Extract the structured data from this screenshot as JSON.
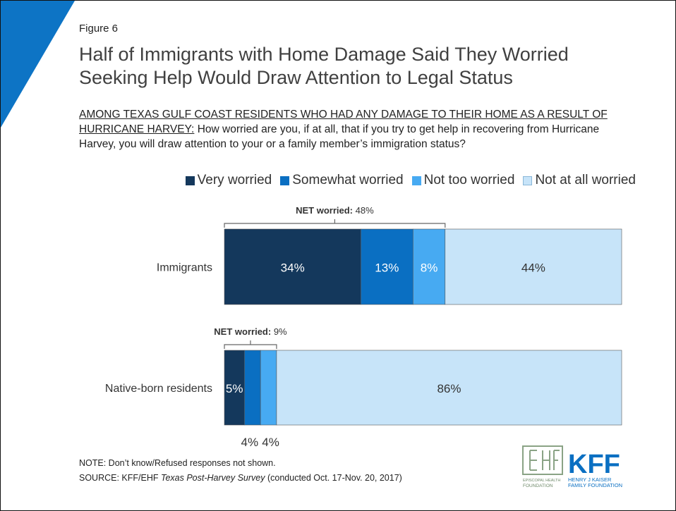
{
  "figure_label": "Figure 6",
  "title_line1": "Half of Immigrants with Home Damage Said They Worried",
  "title_line2": "Seeking Help Would Draw Attention to Legal Status",
  "subtitle_underlined": "AMONG TEXAS GULF COAST RESIDENTS WHO HAD ANY DAMAGE TO THEIR HOME AS A RESULT OF HURRICANE HARVEY:",
  "subtitle_question": "How worried are you, if at all, that if you try to get help in recovering from Hurricane Harvey, you will draw attention to your or a family member’s immigration status?",
  "colors": {
    "very": "#14385c",
    "somewhat": "#0a6fc2",
    "nottoo": "#47aaf2",
    "notatall": "#c7e4f9",
    "accent_triangle": "#0d74c5"
  },
  "chart_data": {
    "type": "bar",
    "orientation": "horizontal",
    "stacked": true,
    "xlim": [
      0,
      100
    ],
    "categories": [
      "Immigrants",
      "Native-born residents"
    ],
    "series": [
      {
        "name": "Very worried",
        "values": [
          34,
          5
        ],
        "labels": [
          "34%",
          "5%"
        ]
      },
      {
        "name": "Somewhat worried",
        "values": [
          13,
          4
        ],
        "labels": [
          "13%",
          "4%"
        ]
      },
      {
        "name": "Not too worried",
        "values": [
          8,
          4
        ],
        "labels": [
          "8%",
          "4%"
        ]
      },
      {
        "name": "Not at all worried",
        "values": [
          44,
          86
        ],
        "labels": [
          "44%",
          "86%"
        ]
      }
    ],
    "annotations": [
      {
        "bold": "NET worried:",
        "text": " 48%",
        "category": "Immigrants"
      },
      {
        "bold": "NET worried:",
        "text": " 9%",
        "category": "Native-born residents"
      }
    ],
    "legend_position": "top-right"
  },
  "note_line": "NOTE: Don’t know/Refused responses not shown.",
  "source_prefix": "SOURCE: KFF/EHF ",
  "source_title": "Texas Post-Harvey Survey",
  "source_suffix": " (conducted Oct. 17-Nov. 20, 2017)",
  "logo": {
    "ehf_line1": "EPISCOPAL HEALTH",
    "ehf_line2": "FOUNDATION",
    "kff": "KFF",
    "kff_line1": "HENRY J KAISER",
    "kff_line2": "FAMILY FOUNDATION"
  }
}
